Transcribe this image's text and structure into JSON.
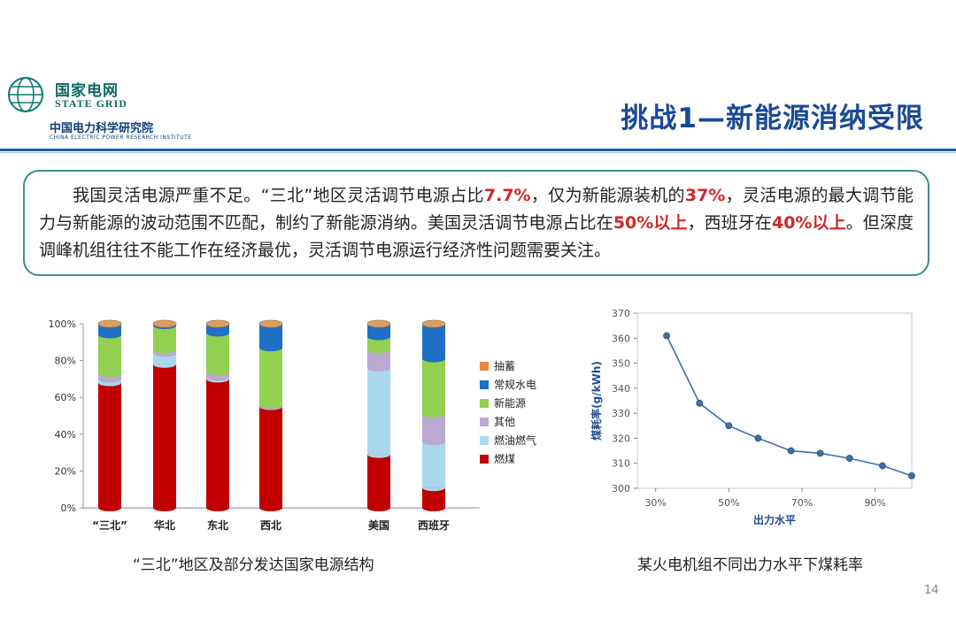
{
  "logo": {
    "cn": "国家电网",
    "en": "STATE GRID",
    "cn2": "中国电力科学研究院",
    "en2": "CHINA ELECTRIC POWER RESEARCH INSTITUTE"
  },
  "title": "挑战1—新能源消纳受限",
  "callout": {
    "t1": "我国灵活电源严重不足。“三北”地区灵活调节电源占比",
    "h1": "7.7%",
    "t2": "，仅为新能源装机的",
    "h2": "37%",
    "t3": "，灵活电源的最大调节能力与新能源的波动范围不匹配，制约了新能源消纳。美国灵活调节电源占比在",
    "h3": "50%以上",
    "t4": "，西班牙在",
    "h4": "40%以上",
    "t5": "。但深度调峰机组往往不能工作在经济最优，灵活调节电源运行经济性问题需要关注。"
  },
  "chart_data": [
    {
      "type": "bar",
      "stacked": true,
      "categories": [
        "“三北”",
        "华北",
        "东北",
        "西北",
        "美国",
        "西班牙"
      ],
      "yticks": [
        "0%",
        "20%",
        "40%",
        "60%",
        "80%",
        "100%"
      ],
      "ylim": [
        0,
        100
      ],
      "legend": "right",
      "series": [
        {
          "name": "燃煤",
          "color": "#c00000",
          "values": [
            68,
            78,
            70,
            55,
            29,
            11
          ]
        },
        {
          "name": "燃油燃气",
          "color": "#a8d8ea",
          "values": [
            2,
            6,
            1,
            0,
            47,
            25
          ]
        },
        {
          "name": "其他",
          "color": "#b9a8d2",
          "values": [
            3,
            2,
            3,
            1,
            10,
            15
          ]
        },
        {
          "name": "新能源",
          "color": "#92d050",
          "values": [
            21,
            13,
            21,
            31,
            7,
            30
          ]
        },
        {
          "name": "常规水电",
          "color": "#1f6fc5",
          "values": [
            6,
            1,
            5,
            13,
            7,
            19
          ]
        },
        {
          "name": "抽蓄",
          "color": "#e6873c",
          "values": [
            0,
            0,
            0,
            0,
            0,
            0
          ]
        }
      ]
    },
    {
      "type": "line",
      "x": [
        33,
        42,
        50,
        58,
        67,
        75,
        83,
        92,
        100
      ],
      "y": [
        361,
        334,
        325,
        320,
        315,
        314,
        312,
        309,
        305
      ],
      "xticks": [
        "30%",
        "50%",
        "70%",
        "90%"
      ],
      "ylim": [
        300,
        370
      ],
      "yticks": [
        "300",
        "310",
        "320",
        "330",
        "340",
        "350",
        "360",
        "370"
      ],
      "xlabel": "出力水平",
      "ylabel": "煤耗率(g/kWh)",
      "color": "#3d6fb0"
    }
  ],
  "captions": {
    "left": "“三北”地区及部分发达国家电源结构",
    "right": "某火电机组不同出力水平下煤耗率"
  },
  "page_number": "14"
}
